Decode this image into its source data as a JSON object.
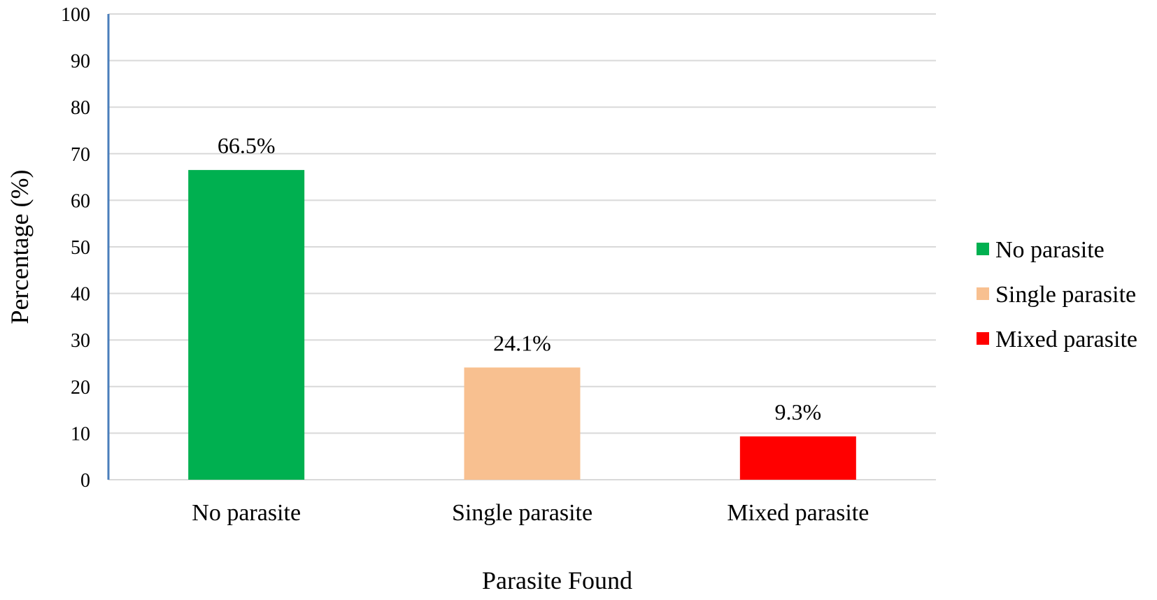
{
  "chart_data": {
    "type": "bar",
    "categories": [
      "No parasite",
      "Single parasite",
      "Mixed parasite"
    ],
    "values": [
      66.5,
      24.1,
      9.3
    ],
    "data_labels": [
      "66.5%",
      "24.1%",
      "9.3%"
    ],
    "colors": [
      "#00B050",
      "#F8C090",
      "#FF0000"
    ],
    "xlabel": "Parasite Found",
    "ylabel": "Percentage (%)",
    "ylim": [
      0,
      100
    ],
    "yticks": [
      0,
      10,
      20,
      30,
      40,
      50,
      60,
      70,
      80,
      90,
      100
    ],
    "grid": true,
    "gridline_color": "#D9D9D9",
    "axis_color": "#4A7EBB",
    "legend": {
      "placement": "right",
      "entries": [
        "No parasite",
        "Single parasite",
        "Mixed parasite"
      ]
    }
  }
}
